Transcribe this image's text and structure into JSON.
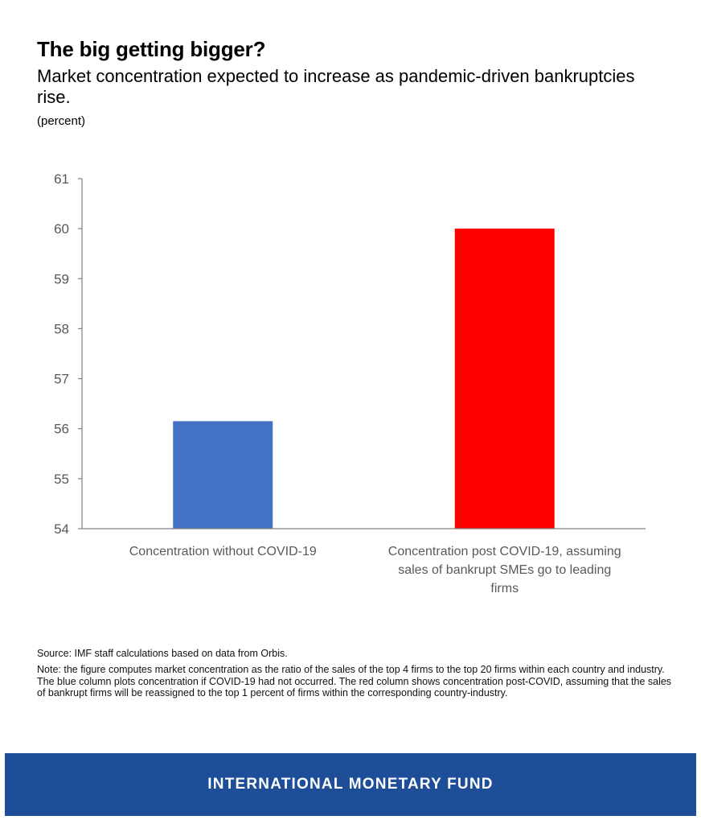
{
  "header": {
    "title": "The big getting bigger?",
    "subtitle": "Market concentration expected to increase as pandemic-driven bankruptcies rise.",
    "unit": "(percent)"
  },
  "chart_data": {
    "type": "bar",
    "title": "The big getting bigger?",
    "ylabel": "(percent)",
    "xlabel": "",
    "ylim": [
      54,
      61
    ],
    "yticks": [
      54,
      55,
      56,
      57,
      58,
      59,
      60,
      61
    ],
    "categories": [
      [
        "Concentration without COVID-19"
      ],
      [
        "Concentration post COVID-19, assuming",
        "sales of bankrupt SMEs go to leading",
        "firms"
      ]
    ],
    "values": [
      56.15,
      60.0
    ],
    "colors": [
      "#4472c4",
      "#ff0000"
    ],
    "grid": false
  },
  "notes": {
    "source": "Source: IMF staff calculations based on data from Orbis.",
    "note": "Note: the figure computes market concentration as the ratio of the sales of the top 4 firms to the top 20 firms within each country and industry. The blue column plots concentration if COVID-19 had not occurred. The red column shows concentration post-COVID, assuming that the sales of bankrupt firms will be reassigned to the top 1 percent of firms within the corresponding country-industry."
  },
  "footer": {
    "label": "INTERNATIONAL MONETARY FUND",
    "color": "#1f4e99"
  }
}
